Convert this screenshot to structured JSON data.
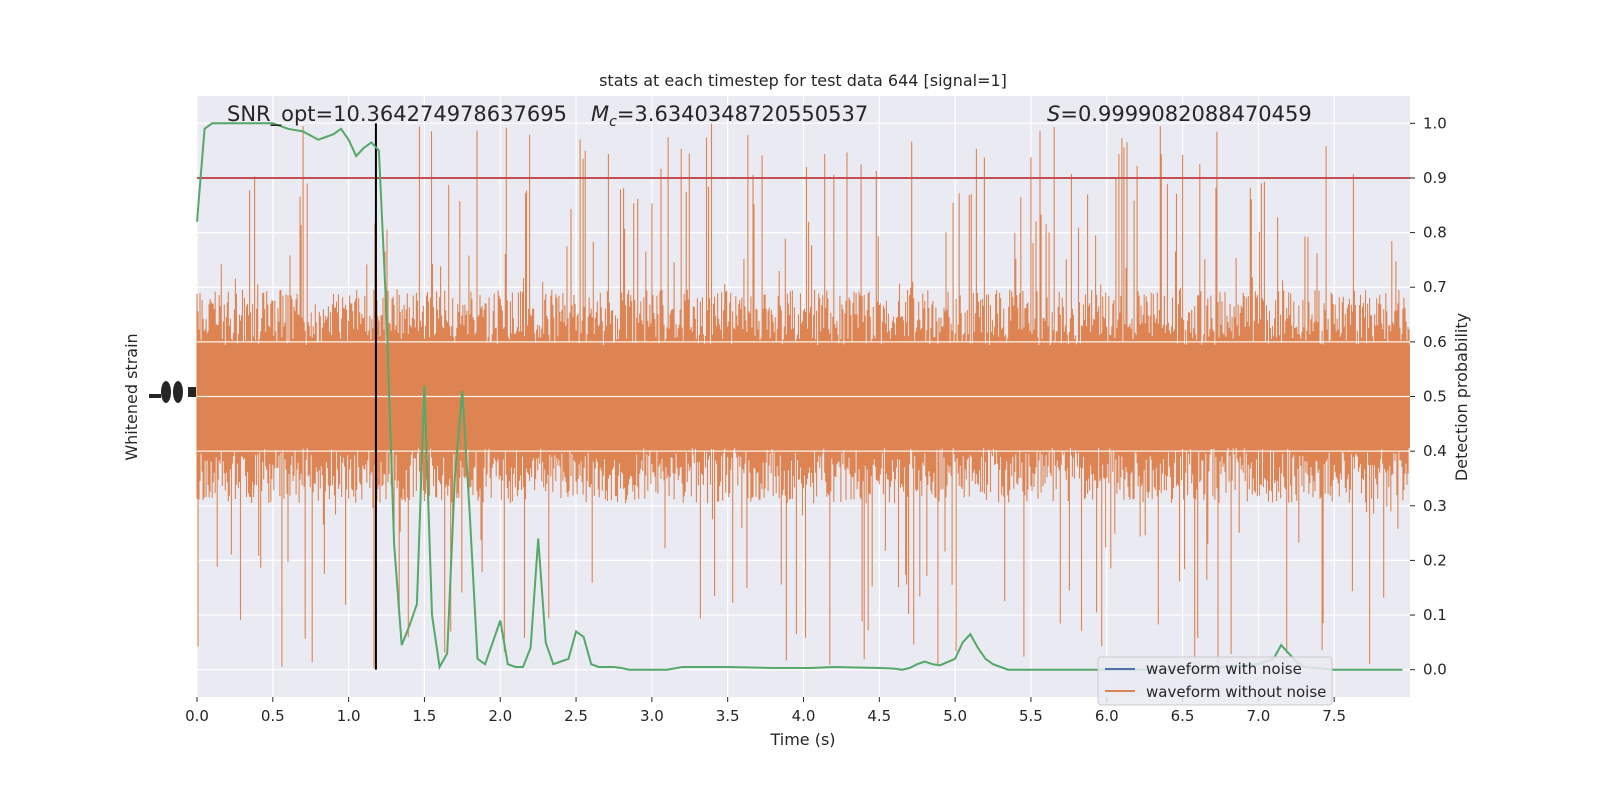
{
  "chart_data": {
    "type": "line",
    "title": "stats at each timestep for test data 644 [signal=1]",
    "xlabel": "Time (s)",
    "ylabel_left": "Whitened strain",
    "ylabel_right": "Detection probability",
    "xlim": [
      0.0,
      8.0
    ],
    "ylim_right": [
      -0.05,
      1.05
    ],
    "x_ticks": [
      "0.0",
      "0.5",
      "1.0",
      "1.5",
      "2.0",
      "2.5",
      "3.0",
      "3.5",
      "4.0",
      "4.5",
      "5.0",
      "5.5",
      "6.0",
      "6.5",
      "7.0",
      "7.5"
    ],
    "x_tick_values": [
      0.0,
      0.5,
      1.0,
      1.5,
      2.0,
      2.5,
      3.0,
      3.5,
      4.0,
      4.5,
      5.0,
      5.5,
      6.0,
      6.5,
      7.0,
      7.5
    ],
    "y_right_ticks": [
      "0.0",
      "0.1",
      "0.2",
      "0.3",
      "0.4",
      "0.5",
      "0.6",
      "0.7",
      "0.8",
      "0.9",
      "1.0"
    ],
    "y_right_tick_values": [
      0.0,
      0.1,
      0.2,
      0.3,
      0.4,
      0.5,
      0.6,
      0.7,
      0.8,
      0.9,
      1.0
    ],
    "annotations": {
      "snr": "SNR_opt=10.364274978637695",
      "mc_prefix": "M",
      "mc_sub": "c",
      "mc_value": "=3.6340348720550537",
      "s_prefix": "S",
      "s_value": "=0.9999082088470459"
    },
    "threshold": {
      "y": 0.9,
      "color": "#c44e52"
    },
    "marker_time": {
      "x": 1.18,
      "color": "#000000"
    },
    "strain_series": [
      {
        "name": "waveform with noise",
        "color": "#4c72b0"
      },
      {
        "name": "waveform without noise",
        "color": "#dd8452",
        "band_center": 0.5,
        "band_halfwidth": 0.17,
        "max_excursion": 0.5
      }
    ],
    "probability_series": {
      "color": "#55a868",
      "x": [
        0.0,
        0.05,
        0.1,
        0.15,
        0.2,
        0.3,
        0.4,
        0.5,
        0.6,
        0.7,
        0.8,
        0.85,
        0.9,
        0.95,
        1.0,
        1.05,
        1.1,
        1.15,
        1.2,
        1.25,
        1.3,
        1.35,
        1.4,
        1.45,
        1.5,
        1.55,
        1.6,
        1.65,
        1.7,
        1.75,
        1.8,
        1.85,
        1.9,
        1.95,
        2.0,
        2.05,
        2.1,
        2.15,
        2.2,
        2.25,
        2.3,
        2.35,
        2.4,
        2.45,
        2.5,
        2.55,
        2.6,
        2.65,
        2.7,
        2.75,
        2.8,
        2.85,
        2.9,
        3.0,
        3.1,
        3.2,
        3.5,
        3.8,
        4.0,
        4.05,
        4.2,
        4.5,
        4.6,
        4.65,
        4.7,
        4.75,
        4.8,
        4.85,
        4.9,
        5.0,
        5.05,
        5.1,
        5.15,
        5.2,
        5.25,
        5.3,
        5.35,
        5.4,
        5.45,
        5.5,
        6.0,
        6.5,
        7.0,
        7.1,
        7.15,
        7.2,
        7.25,
        7.3,
        7.5,
        7.95
      ],
      "y": [
        0.82,
        0.99,
        1.0,
        1.0,
        1.0,
        1.0,
        1.0,
        1.0,
        0.99,
        0.985,
        0.97,
        0.975,
        0.98,
        0.99,
        0.97,
        0.94,
        0.955,
        0.965,
        0.95,
        0.65,
        0.23,
        0.045,
        0.08,
        0.12,
        0.52,
        0.1,
        0.005,
        0.03,
        0.35,
        0.51,
        0.28,
        0.02,
        0.01,
        0.05,
        0.09,
        0.01,
        0.005,
        0.005,
        0.04,
        0.24,
        0.05,
        0.01,
        0.015,
        0.02,
        0.07,
        0.06,
        0.01,
        0.005,
        0.005,
        0.005,
        0.003,
        0.0,
        0.0,
        0.0,
        0.0,
        0.005,
        0.005,
        0.003,
        0.003,
        0.003,
        0.005,
        0.003,
        0.002,
        0.0,
        0.003,
        0.01,
        0.015,
        0.01,
        0.008,
        0.02,
        0.05,
        0.065,
        0.04,
        0.02,
        0.01,
        0.005,
        0.0,
        0.0,
        0.0,
        0.0,
        0.0,
        0.0,
        0.01,
        0.02,
        0.045,
        0.03,
        0.015,
        0.005,
        0.0,
        0.0
      ]
    }
  },
  "colors": {
    "plot_bg": "#eaeaf2",
    "grid": "#ffffff",
    "text": "#262626"
  }
}
